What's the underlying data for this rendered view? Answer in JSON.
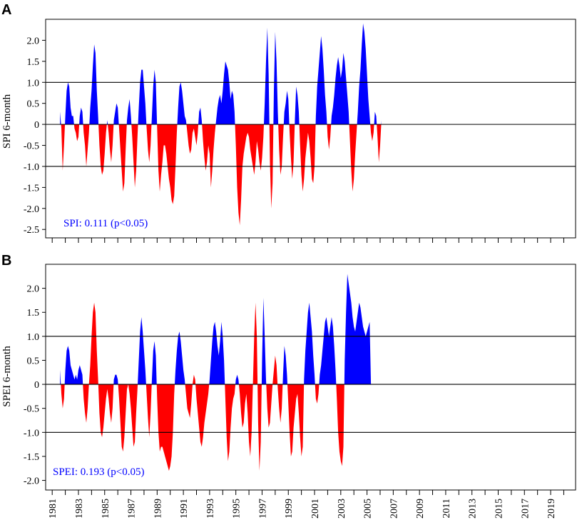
{
  "figure": {
    "x_tick_labels": [
      "1981",
      "1983",
      "1985",
      "1987",
      "1989",
      "1991",
      "1993",
      "1995",
      "1997",
      "1999",
      "2001",
      "2003",
      "2005",
      "2007",
      "2009",
      "2011",
      "2013",
      "2015",
      "2017",
      "2019"
    ],
    "positive_color": "#0000ff",
    "negative_color": "#ff0000"
  },
  "chart_data": [
    {
      "type": "area",
      "panel": "A",
      "ylabel": "SPI 6-month",
      "annotation": "SPI: 0.111 (p<0.05)",
      "annotation_color": "#0000ff",
      "y_tick_labels": [
        "2.0",
        "1.5",
        "1.0",
        "0.5",
        "0",
        "-0.5",
        "-1.0",
        "-1.5",
        "-2.0",
        "-2.5"
      ],
      "ylim": [
        -2.7,
        2.5
      ],
      "xlim": [
        1980.5,
        2020.9
      ],
      "reference_lines": [
        1.0,
        0,
        -1.0
      ],
      "year_start": 1981.6,
      "step": 0.1,
      "values": [
        0.3,
        -0.1,
        -1.1,
        -0.5,
        0.2,
        0.8,
        1.0,
        0.9,
        0.4,
        0.2,
        0.2,
        -0.1,
        -0.2,
        -0.4,
        -0.3,
        0.2,
        0.4,
        0.3,
        -0.2,
        -0.5,
        -1.0,
        -0.6,
        -0.2,
        0.4,
        0.8,
        1.4,
        1.9,
        1.7,
        0.8,
        0.2,
        -0.5,
        -1.0,
        -1.2,
        -1.1,
        -0.7,
        -0.2,
        0.1,
        -0.2,
        -0.6,
        -0.9,
        -0.5,
        0.1,
        0.3,
        0.5,
        0.4,
        -0.1,
        -0.6,
        -1.1,
        -1.6,
        -1.4,
        -0.6,
        0.1,
        0.4,
        0.6,
        0.2,
        -0.3,
        -0.9,
        -1.5,
        -1.1,
        -0.3,
        0.4,
        1.0,
        1.3,
        1.3,
        0.9,
        0.5,
        -0.1,
        -0.6,
        -0.9,
        -0.5,
        0.2,
        0.9,
        1.3,
        1.0,
        -0.1,
        -1.1,
        -1.6,
        -1.2,
        -0.9,
        -0.5,
        -0.5,
        -0.7,
        -1.0,
        -1.3,
        -1.5,
        -1.8,
        -1.9,
        -1.7,
        -1.0,
        -0.2,
        0.4,
        0.9,
        1.0,
        0.8,
        0.5,
        0.2,
        0.1,
        -0.2,
        -0.5,
        -0.7,
        -0.6,
        -0.2,
        -0.1,
        -0.3,
        -0.5,
        -0.2,
        0.3,
        0.4,
        0.1,
        -0.4,
        -0.8,
        -1.1,
        -0.9,
        -0.5,
        -0.7,
        -1.5,
        -1.1,
        -0.6,
        -0.2,
        0.1,
        0.4,
        0.6,
        0.7,
        0.5,
        0.8,
        1.2,
        1.5,
        1.4,
        1.3,
        1.0,
        0.6,
        0.8,
        0.7,
        0.3,
        -0.5,
        -1.5,
        -2.1,
        -2.4,
        -1.8,
        -1.0,
        -0.7,
        -0.5,
        -0.3,
        -0.2,
        -0.3,
        -0.6,
        -0.8,
        -1.0,
        -1.2,
        -0.9,
        -0.4,
        -0.6,
        -0.9,
        -1.1,
        -0.8,
        -0.3,
        0.5,
        1.5,
        2.3,
        1.2,
        -0.9,
        -2.0,
        -1.4,
        0.8,
        2.2,
        1.5,
        0.3,
        -0.6,
        -1.2,
        -1.0,
        -0.3,
        0.3,
        0.5,
        0.8,
        0.6,
        -0.2,
        -0.8,
        -1.3,
        -0.9,
        0.1,
        0.9,
        0.7,
        0.3,
        -0.5,
        -1.2,
        -1.6,
        -1.3,
        -0.8,
        -0.5,
        -0.2,
        -0.4,
        -0.8,
        -1.3,
        -1.4,
        -1.0,
        0.2,
        0.9,
        1.3,
        1.7,
        2.1,
        1.8,
        1.3,
        0.7,
        0.3,
        -0.3,
        -0.6,
        -0.3,
        0.2,
        0.4,
        0.7,
        1.1,
        1.4,
        1.6,
        1.4,
        1.1,
        1.3,
        1.7,
        1.5,
        1.1,
        0.7,
        0.3,
        -0.4,
        -1.1,
        -1.6,
        -1.3,
        -0.7,
        -0.2,
        0.3,
        0.9,
        1.3,
        1.9,
        2.4,
        2.2,
        1.8,
        1.2,
        0.6,
        0.2,
        -0.2,
        -0.4,
        -0.2,
        0.3,
        0.2,
        -0.3,
        -0.9,
        -0.5,
        0.1
      ],
      "title": ""
    },
    {
      "type": "area",
      "panel": "B",
      "ylabel": "SPEI 6-month",
      "annotation": "SPEI: 0.193 (p<0.05)",
      "annotation_color": "#0000ff",
      "y_tick_labels": [
        "2.0",
        "1.5",
        "1.0",
        "0.5",
        "0",
        "-0.5",
        "-1.0",
        "-1.5",
        "-2.0"
      ],
      "ylim": [
        -2.2,
        2.5
      ],
      "xlim": [
        1980.5,
        2020.9
      ],
      "reference_lines": [
        1.0,
        0,
        -1.0
      ],
      "year_start": 1981.6,
      "step": 0.1,
      "values": [
        0.3,
        -0.2,
        -0.5,
        -0.3,
        0.3,
        0.7,
        0.8,
        0.7,
        0.4,
        0.3,
        0.2,
        0.1,
        0.2,
        0.1,
        0.3,
        0.4,
        0.3,
        0.2,
        -0.3,
        -0.6,
        -0.8,
        -0.5,
        0.0,
        0.4,
        1.0,
        1.5,
        1.7,
        1.5,
        0.7,
        0.1,
        -0.6,
        -1.0,
        -1.1,
        -0.9,
        -0.6,
        -0.3,
        -0.1,
        -0.3,
        -0.6,
        -0.8,
        -0.5,
        0.1,
        0.2,
        0.2,
        0.1,
        -0.3,
        -0.8,
        -1.3,
        -1.4,
        -1.1,
        -0.6,
        -0.1,
        0.0,
        -0.2,
        -0.5,
        -0.9,
        -1.3,
        -1.2,
        -0.6,
        -0.1,
        0.5,
        1.1,
        1.4,
        1.1,
        0.7,
        0.3,
        -0.2,
        -0.7,
        -1.1,
        -0.6,
        0.1,
        0.7,
        0.9,
        0.6,
        -0.3,
        -1.0,
        -1.4,
        -1.3,
        -1.3,
        -1.4,
        -1.5,
        -1.6,
        -1.7,
        -1.8,
        -1.7,
        -1.5,
        -1.0,
        -0.2,
        0.3,
        0.7,
        1.0,
        1.1,
        0.9,
        0.6,
        0.3,
        0.1,
        -0.2,
        -0.5,
        -0.6,
        -0.7,
        -0.4,
        0.0,
        0.2,
        0.1,
        -0.3,
        -0.6,
        -0.9,
        -1.2,
        -1.3,
        -1.1,
        -0.8,
        -0.6,
        -0.4,
        -0.2,
        0.1,
        0.5,
        0.9,
        1.2,
        1.3,
        1.1,
        0.8,
        0.6,
        0.9,
        1.3,
        1.0,
        0.5,
        -0.3,
        -1.1,
        -1.6,
        -1.4,
        -0.9,
        -0.5,
        -0.3,
        -0.2,
        0.1,
        0.2,
        0.1,
        -0.2,
        -0.6,
        -0.9,
        -0.8,
        -0.4,
        -0.2,
        -0.6,
        -1.2,
        -1.5,
        -1.0,
        0.0,
        1.0,
        1.7,
        1.0,
        -0.8,
        -1.8,
        -1.2,
        0.5,
        1.8,
        1.0,
        0.1,
        -0.5,
        -0.9,
        -0.8,
        -0.4,
        0.0,
        0.3,
        0.6,
        0.4,
        -0.1,
        -0.5,
        -0.8,
        -0.5,
        0.2,
        0.8,
        0.6,
        0.2,
        -0.4,
        -1.0,
        -1.5,
        -1.4,
        -0.9,
        -0.6,
        -0.3,
        -0.2,
        -0.6,
        -1.1,
        -1.5,
        -1.3,
        0.1,
        0.7,
        1.1,
        1.5,
        1.7,
        1.4,
        1.1,
        0.6,
        0.2,
        -0.3,
        -0.4,
        -0.2,
        0.2,
        0.4,
        0.7,
        1.0,
        1.3,
        1.4,
        1.2,
        1.0,
        1.2,
        1.4,
        1.2,
        0.8,
        0.3,
        -0.3,
        -1.0,
        -1.4,
        -1.6,
        -1.7,
        -1.3,
        0.5,
        1.5,
        2.3,
        2.1,
        1.9,
        1.7,
        1.4,
        1.2,
        1.1,
        1.3,
        1.5,
        1.7,
        1.6,
        1.4,
        1.2,
        1.1,
        1.0,
        1.1,
        1.2,
        1.3,
        0.0
      ],
      "title": ""
    }
  ]
}
